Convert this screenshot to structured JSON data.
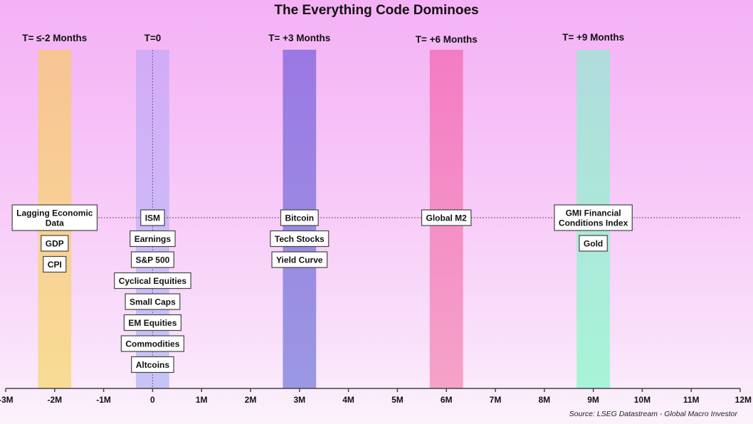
{
  "chart_data": {
    "type": "timeline",
    "title": "The Everything Code Dominoes",
    "source": "Source: LSEG Datastream - Global Macro Investor",
    "xlim": [
      -3,
      12
    ],
    "x_ticks": [
      -3,
      -2,
      -1,
      0,
      1,
      2,
      3,
      4,
      5,
      6,
      7,
      8,
      9,
      10,
      11,
      12
    ],
    "x_tick_labels": [
      "-3M",
      "-2M",
      "-1M",
      "0",
      "1M",
      "2M",
      "3M",
      "4M",
      "5M",
      "6M",
      "7M",
      "8M",
      "9M",
      "10M",
      "11M",
      "12M"
    ],
    "reference_line": "horizontal dotted line through first row of labels; vertical dotted line at 0",
    "bands": [
      {
        "x": -2,
        "label": "T= ≤-2 Months",
        "color_top": "#f8c494",
        "color_bottom": "#f8dc94",
        "items": [
          "Lagging Economic\nData",
          "GDP",
          "CPI"
        ]
      },
      {
        "x": 0,
        "label": "T=0",
        "color_top": "#d3acf7",
        "color_bottom": "#c8c4f7",
        "items": [
          "ISM",
          "Earnings",
          "S&P 500",
          "Cyclical Equities",
          "Small Caps",
          "EM Equities",
          "Commodities",
          "Altcoins"
        ]
      },
      {
        "x": 3,
        "label": "T= +3 Months",
        "color_top": "#9b78e3",
        "color_bottom": "#9a98e3",
        "items": [
          "Bitcoin",
          "Tech Stocks",
          "Yield Curve"
        ]
      },
      {
        "x": 6,
        "label": "T= +6 Months",
        "color_top": "#f47cc4",
        "color_bottom": "#f5a2c8",
        "items": [
          "Global M2"
        ]
      },
      {
        "x": 9,
        "label": "T= +9 Months",
        "color_top": "#b0dcdc",
        "color_bottom": "#a8f4d8",
        "items": [
          "GMI Financial\nConditions Index",
          "Gold"
        ]
      }
    ],
    "band_halfwidth": 0.34
  }
}
